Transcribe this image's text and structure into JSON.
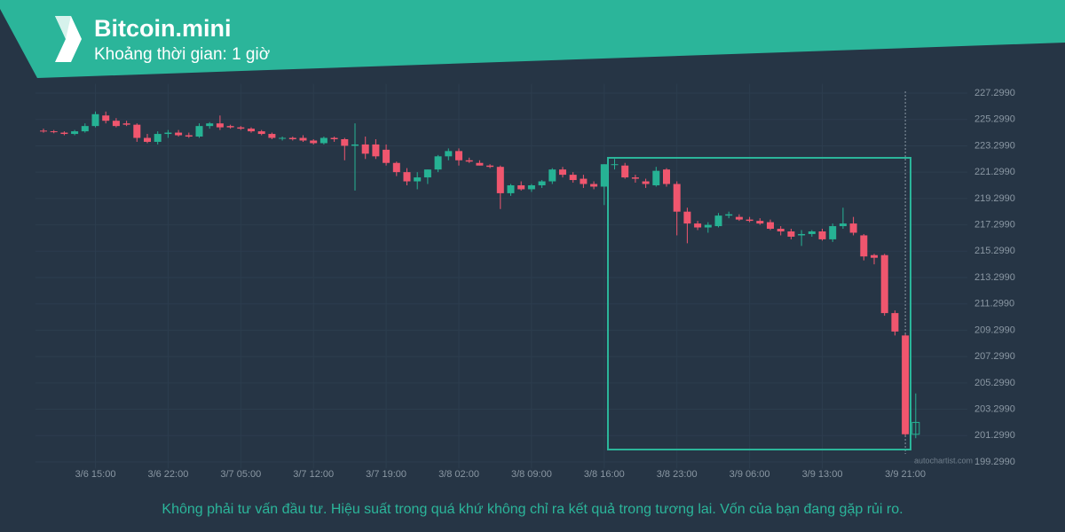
{
  "chart_data": {
    "type": "candlestick",
    "title": "Bitcoin.mini",
    "subtitle": "Khoảng thời gian: 1 giờ",
    "footnote": "Không phải tư vấn đầu tư. Hiệu suất trong quá khứ không chỉ ra kết quả trong tương lai. Vốn của bạn đang gặp rủi ro.",
    "watermark": "autochartist.com",
    "up_color": "#26b294",
    "down_color": "#f0566e",
    "grid": true,
    "categories": [
      null,
      null,
      null,
      null,
      null,
      "3/6 15:00",
      null,
      null,
      null,
      null,
      null,
      null,
      "3/6 22:00",
      null,
      null,
      null,
      null,
      null,
      null,
      "3/7 05:00",
      null,
      null,
      null,
      null,
      null,
      null,
      "3/7 12:00",
      null,
      null,
      null,
      null,
      null,
      null,
      "3/7 19:00",
      null,
      null,
      null,
      null,
      null,
      null,
      "3/8 02:00",
      null,
      null,
      null,
      null,
      null,
      null,
      "3/8 09:00",
      null,
      null,
      null,
      null,
      null,
      null,
      "3/8 16:00",
      null,
      null,
      null,
      null,
      null,
      null,
      "3/8 23:00",
      null,
      null,
      null,
      null,
      null,
      null,
      "3/9 06:00",
      null,
      null,
      null,
      null,
      null,
      null,
      "3/9 13:00",
      null,
      null,
      null,
      null,
      null,
      null,
      null,
      "3/9 21:00",
      null
    ],
    "open": [
      224.45,
      224.4,
      224.3,
      224.2,
      224.4,
      224.8,
      225.6,
      225.2,
      225.0,
      224.9,
      223.9,
      223.6,
      224.2,
      224.3,
      224.1,
      224.0,
      224.8,
      225.0,
      224.8,
      224.7,
      224.6,
      224.4,
      224.2,
      223.9,
      223.9,
      223.9,
      223.7,
      223.5,
      223.9,
      223.8,
      223.3,
      223.4,
      223.4,
      223.0,
      222.0,
      221.3,
      220.6,
      220.9,
      221.5,
      222.5,
      222.9,
      222.2,
      222.0,
      221.8,
      221.7,
      219.7,
      220.3,
      220.0,
      220.3,
      220.6,
      221.5,
      221.1,
      220.8,
      220.4,
      220.2,
      221.9,
      221.8,
      220.9,
      220.6,
      220.3,
      221.5,
      220.4,
      218.3,
      217.4,
      217.1,
      217.2,
      218.0,
      217.9,
      217.7,
      217.6,
      217.5,
      217.0,
      216.8,
      216.5,
      216.6,
      216.8,
      216.2,
      217.2,
      217.4,
      216.5,
      215.0,
      215.0,
      210.6,
      208.9,
      201.4
    ],
    "high": [
      224.6,
      224.5,
      224.4,
      224.5,
      225.0,
      225.9,
      225.9,
      225.4,
      225.2,
      225.0,
      224.2,
      224.4,
      224.5,
      224.5,
      224.3,
      225.0,
      225.1,
      225.6,
      224.9,
      224.8,
      224.7,
      224.5,
      224.3,
      224.0,
      224.0,
      224.1,
      223.8,
      224.0,
      224.0,
      223.9,
      225.0,
      224.0,
      223.8,
      223.4,
      222.1,
      221.6,
      221.3,
      221.5,
      222.6,
      223.1,
      223.1,
      222.4,
      222.2,
      221.9,
      221.8,
      220.4,
      220.6,
      220.4,
      220.7,
      221.6,
      221.7,
      221.3,
      221.1,
      220.6,
      221.9,
      222.3,
      222.0,
      221.1,
      220.8,
      221.7,
      221.6,
      220.6,
      218.6,
      217.6,
      217.5,
      218.2,
      218.3,
      218.1,
      217.9,
      217.8,
      217.7,
      217.2,
      217.0,
      216.9,
      216.9,
      217.0,
      217.4,
      218.6,
      217.9,
      216.6,
      215.1,
      215.1,
      210.8,
      209.0,
      204.5
    ],
    "low": [
      224.3,
      224.25,
      224.1,
      224.1,
      224.3,
      224.7,
      225.0,
      224.7,
      224.8,
      223.6,
      223.5,
      223.4,
      223.9,
      224.0,
      223.9,
      223.9,
      224.6,
      224.5,
      224.6,
      224.5,
      224.3,
      224.1,
      223.8,
      223.7,
      223.7,
      223.6,
      223.4,
      223.4,
      223.6,
      222.2,
      219.9,
      222.3,
      222.3,
      221.8,
      221.0,
      220.3,
      220.0,
      220.4,
      221.3,
      222.2,
      221.8,
      222.0,
      221.8,
      221.6,
      218.5,
      219.5,
      219.9,
      219.8,
      220.1,
      220.4,
      220.9,
      220.5,
      220.1,
      220.0,
      218.8,
      221.5,
      220.8,
      220.5,
      220.1,
      220.2,
      220.2,
      216.5,
      215.9,
      216.9,
      216.7,
      217.1,
      217.8,
      217.6,
      217.5,
      217.3,
      216.9,
      216.5,
      216.2,
      215.7,
      216.4,
      216.1,
      216.0,
      217.0,
      216.5,
      214.6,
      214.3,
      210.4,
      208.9,
      201.3,
      201.1
    ],
    "close": [
      224.4,
      224.35,
      224.2,
      224.4,
      224.8,
      225.7,
      225.2,
      224.8,
      224.9,
      223.9,
      223.6,
      224.2,
      224.3,
      224.1,
      224.0,
      224.8,
      225.0,
      224.7,
      224.7,
      224.6,
      224.4,
      224.2,
      223.9,
      223.9,
      223.8,
      223.7,
      223.5,
      223.9,
      223.8,
      223.3,
      223.4,
      222.7,
      222.5,
      222.0,
      221.3,
      220.6,
      220.9,
      221.5,
      222.5,
      222.9,
      222.2,
      222.1,
      221.8,
      221.7,
      219.7,
      220.3,
      220.0,
      220.3,
      220.6,
      221.5,
      221.1,
      220.7,
      220.4,
      220.2,
      221.9,
      221.9,
      220.9,
      220.8,
      220.4,
      221.4,
      220.4,
      218.3,
      217.4,
      217.1,
      217.3,
      218.0,
      218.1,
      217.7,
      217.6,
      217.4,
      217.0,
      216.8,
      216.4,
      216.6,
      216.8,
      216.2,
      217.2,
      217.4,
      216.7,
      214.9,
      214.8,
      210.6,
      209.2,
      201.4,
      202.3
    ],
    "ylim": [
      198.8,
      228.0
    ],
    "yticks": [
      {
        "value": 199.299,
        "label": "199.2990"
      },
      {
        "value": 201.299,
        "label": "201.2990"
      },
      {
        "value": 203.299,
        "label": "203.2990"
      },
      {
        "value": 205.299,
        "label": "205.2990"
      },
      {
        "value": 207.299,
        "label": "207.2990"
      },
      {
        "value": 209.299,
        "label": "209.2990"
      },
      {
        "value": 211.299,
        "label": "211.2990"
      },
      {
        "value": 213.299,
        "label": "213.2990"
      },
      {
        "value": 215.299,
        "label": "215.2990"
      },
      {
        "value": 217.299,
        "label": "217.2990"
      },
      {
        "value": 219.299,
        "label": "219.2990"
      },
      {
        "value": 221.299,
        "label": "221.2990"
      },
      {
        "value": 223.299,
        "label": "223.2990"
      },
      {
        "value": 225.299,
        "label": "225.2990"
      },
      {
        "value": 227.299,
        "label": "227.2990"
      }
    ]
  }
}
